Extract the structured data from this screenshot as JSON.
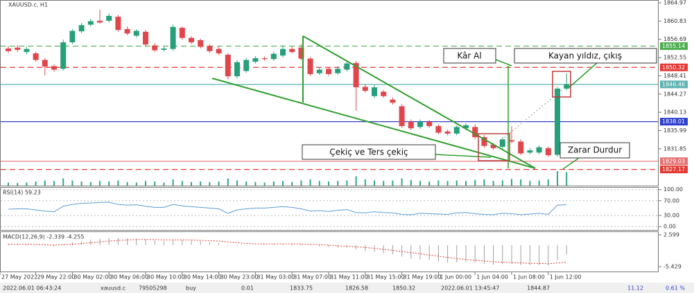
{
  "chart_data": [
    {
      "type": "candlestick",
      "title": "XAUUSD.c, H1",
      "categories": [
        "27 May 2022",
        null,
        null,
        "29 May 22:00",
        null,
        null,
        null,
        "30 May 02:00",
        null,
        null,
        null,
        "30 May 06:00",
        null,
        null,
        null,
        "30 May 10:00",
        null,
        null,
        null,
        "30 May 14:00",
        null,
        null,
        null,
        "30 May 23:00",
        null,
        null,
        null,
        "31 May 03:00",
        null,
        null,
        null,
        "31 May 07:00",
        null,
        null,
        null,
        "31 May 11:00",
        null,
        null,
        null,
        "31 May 15:00",
        null,
        null,
        null,
        "31 May 19:00",
        null,
        null,
        null,
        "1 Jun 00:00",
        null,
        null,
        null,
        "1 Jun 04:00",
        null,
        null,
        null,
        "1 Jun 08:00",
        null,
        null,
        null,
        "1 Jun 12:00",
        null,
        null
      ],
      "open": [
        1854.6,
        1854.8,
        1853.8,
        1853.5,
        1852.0,
        1850.6,
        1850.0,
        1856.0,
        1858.5,
        1860.0,
        1860.9,
        1860.9,
        1861.8,
        1859.0,
        1857.5,
        1858.4,
        1855.3,
        1854.3,
        1854.5,
        1859.3,
        1857.0,
        1856.5,
        1855.2,
        1854.5,
        1853.2,
        1848.3,
        1849.5,
        1851.6,
        1852.4,
        1852.2,
        1853.0,
        1854.5,
        1854.8,
        1852.3,
        1849.0,
        1850.0,
        1849.0,
        1849.8,
        1851.3,
        1845.9,
        1843.8,
        1844.8,
        1843.0,
        1841.5,
        1838.0,
        1836.8,
        1838.0,
        1837.0,
        1835.8,
        1835.3,
        1836.5,
        1836.8,
        1834.5,
        1832.8,
        1832.3,
        1833.8,
        1833.5,
        1831.0,
        1831.0,
        1832.0,
        1830.5,
        1845.5
      ],
      "high": [
        1855.2,
        1855.4,
        1855.0,
        1853.9,
        1852.4,
        1851.0,
        1856.6,
        1859.0,
        1860.4,
        1861.3,
        1863.4,
        1862.5,
        1862.2,
        1859.6,
        1859.0,
        1858.8,
        1855.8,
        1855.0,
        1860.0,
        1859.6,
        1857.4,
        1856.9,
        1855.6,
        1855.0,
        1853.6,
        1851.9,
        1852.4,
        1852.9,
        1852.8,
        1853.9,
        1855.3,
        1855.0,
        1855.6,
        1852.7,
        1850.2,
        1850.4,
        1850.6,
        1851.6,
        1851.8,
        1846.5,
        1846.3,
        1845.2,
        1843.5,
        1842.0,
        1838.5,
        1838.5,
        1838.4,
        1837.4,
        1836.2,
        1837.2,
        1837.6,
        1837.4,
        1835.0,
        1833.2,
        1834.5,
        1837.0,
        1834.0,
        1832.0,
        1832.6,
        1832.4,
        1845.9,
        1849.0
      ],
      "low": [
        1853.6,
        1853.8,
        1853.3,
        1851.6,
        1848.5,
        1849.3,
        1849.6,
        1855.6,
        1858.1,
        1859.6,
        1860.2,
        1860.5,
        1858.4,
        1857.6,
        1857.1,
        1855.1,
        1853.8,
        1853.9,
        1854.1,
        1856.6,
        1855.6,
        1854.6,
        1853.6,
        1853.1,
        1847.6,
        1847.8,
        1849.1,
        1851.2,
        1851.8,
        1851.8,
        1852.6,
        1853.4,
        1851.9,
        1848.4,
        1848.6,
        1848.4,
        1848.6,
        1849.4,
        1840.5,
        1844.6,
        1843.4,
        1843.4,
        1841.9,
        1836.6,
        1836.1,
        1836.4,
        1836.6,
        1835.1,
        1834.9,
        1834.9,
        1836.1,
        1834.1,
        1832.1,
        1831.6,
        1831.9,
        1833.1,
        1830.4,
        1830.6,
        1830.6,
        1830.0,
        1830.1,
        1845.1
      ],
      "close": [
        1854.0,
        1854.3,
        1854.5,
        1852.0,
        1850.5,
        1849.8,
        1856.0,
        1858.6,
        1859.9,
        1860.8,
        1860.5,
        1862.0,
        1858.8,
        1858.0,
        1858.6,
        1855.5,
        1854.2,
        1854.6,
        1859.5,
        1857.0,
        1856.0,
        1855.0,
        1854.0,
        1853.5,
        1848.3,
        1851.5,
        1852.0,
        1852.4,
        1852.2,
        1853.4,
        1854.5,
        1853.8,
        1852.3,
        1848.8,
        1849.8,
        1848.8,
        1850.0,
        1851.2,
        1845.8,
        1845.0,
        1845.8,
        1843.8,
        1842.3,
        1837.0,
        1836.5,
        1838.0,
        1837.0,
        1835.5,
        1835.3,
        1836.8,
        1837.2,
        1834.5,
        1832.5,
        1832.0,
        1834.0,
        1833.5,
        1830.8,
        1831.5,
        1832.2,
        1830.4,
        1845.5,
        1846.5
      ],
      "volume": [
        6,
        5,
        6,
        8,
        10,
        9,
        14,
        10,
        8,
        7,
        9,
        8,
        10,
        7,
        6,
        9,
        8,
        6,
        12,
        9,
        7,
        8,
        7,
        8,
        14,
        10,
        8,
        7,
        6,
        8,
        9,
        7,
        10,
        12,
        9,
        8,
        9,
        10,
        18,
        12,
        10,
        9,
        10,
        14,
        11,
        9,
        8,
        10,
        9,
        10,
        9,
        11,
        12,
        9,
        10,
        13,
        12,
        9,
        10,
        12,
        28,
        26
      ],
      "up_color": "#26a07a",
      "down_color": "#e0474c",
      "volume_color": "#2fa58a",
      "ylim": [
        1823.5,
        1865.6
      ],
      "yticks": [
        1864.97,
        1860.83,
        1856.69,
        1852.55,
        1848.41,
        1844.27,
        1840.13,
        1835.99,
        1831.85
      ],
      "levels": [
        {
          "value": 1855.14,
          "color": "#4caf50",
          "style": "dashed"
        },
        {
          "value": 1850.32,
          "color": "#e53935",
          "style": "dashed"
        },
        {
          "value": 1846.46,
          "color": "#5fb3b3",
          "style": "solid"
        },
        {
          "value": 1838.01,
          "color": "#2d3fcf",
          "style": "solid"
        },
        {
          "value": 1829.03,
          "color": "#e57373",
          "style": "solid"
        },
        {
          "value": 1827.17,
          "color": "#e53935",
          "style": "dashed"
        }
      ],
      "annotations": [
        "Kâr Al",
        "Kayan yıldız, çıkış",
        "Çekiç ve Ters çekiç",
        "Zarar Durdur"
      ]
    },
    {
      "type": "line",
      "title": "RSI(14) 59.23",
      "values": [
        47,
        48,
        48,
        45,
        42,
        40,
        55,
        60,
        63,
        64,
        65,
        66,
        60,
        58,
        59,
        55,
        52,
        52,
        60,
        56,
        54,
        52,
        50,
        48,
        36,
        45,
        48,
        50,
        50,
        52,
        54,
        52,
        48,
        42,
        43,
        41,
        44,
        46,
        38,
        37,
        40,
        38,
        37,
        33,
        32,
        36,
        35,
        34,
        33,
        37,
        38,
        35,
        33,
        32,
        36,
        35,
        32,
        34,
        36,
        33,
        58,
        59.23
      ],
      "color": "#5b9bd5",
      "ylim": [
        -11,
        107
      ],
      "yticks": [
        {
          "value": 100,
          "label": "100.00"
        },
        {
          "value": 70,
          "label": "70.00"
        },
        {
          "value": 30,
          "label": "30.00"
        },
        {
          "value": 0,
          "label": "0.00"
        }
      ],
      "grid": true
    },
    {
      "type": "macd",
      "title": "MACD(12,26,9) -2.339 -4.255",
      "values": [
        0.3,
        0.2,
        0.2,
        0.1,
        -0.1,
        -0.3,
        0.2,
        0.7,
        1.1,
        1.4,
        1.6,
        1.8,
        1.8,
        1.7,
        1.7,
        1.5,
        1.2,
        1.0,
        1.3,
        1.3,
        1.2,
        1.0,
        0.8,
        0.5,
        -0.1,
        -0.2,
        -0.1,
        0.0,
        0.1,
        0.2,
        0.4,
        0.4,
        0.3,
        -0.1,
        -0.3,
        -0.5,
        -0.6,
        -0.6,
        -1.1,
        -1.5,
        -1.7,
        -2.0,
        -2.3,
        -2.9,
        -3.4,
        -3.6,
        -3.8,
        -4.1,
        -4.4,
        -4.4,
        -4.3,
        -4.4,
        -4.7,
        -4.9,
        -4.8,
        -4.8,
        -5.0,
        -5.0,
        -5.0,
        -5.1,
        -3.8,
        -2.339
      ],
      "signal": [
        0.2,
        0.2,
        0.2,
        0.2,
        0.1,
        0.0,
        0.1,
        0.2,
        0.4,
        0.6,
        0.8,
        1.0,
        1.2,
        1.3,
        1.4,
        1.4,
        1.4,
        1.3,
        1.3,
        1.3,
        1.3,
        1.2,
        1.1,
        1.0,
        0.8,
        0.6,
        0.4,
        0.3,
        0.3,
        0.3,
        0.3,
        0.3,
        0.3,
        0.2,
        0.1,
        0.0,
        -0.2,
        -0.3,
        -0.4,
        -0.6,
        -0.8,
        -1.1,
        -1.3,
        -1.6,
        -1.9,
        -2.2,
        -2.5,
        -2.8,
        -3.1,
        -3.4,
        -3.6,
        -3.8,
        -4.0,
        -4.2,
        -4.3,
        -4.4,
        -4.5,
        -4.6,
        -4.6,
        -4.7,
        -4.5,
        -4.255
      ],
      "color": "#a0a0a0",
      "signal_color": "#e53935",
      "ylim": [
        -6.83,
        3.47
      ],
      "yticks": [
        2.599,
        -5.429
      ]
    }
  ],
  "status_bar": [
    "2022.06.01 06:43:24",
    "xauusd.c",
    "79505298",
    "buy",
    "0.01",
    "1833.75",
    "1826.58",
    "1850.32",
    "2022.06.01 13:45:47",
    "1844.87",
    "11.12",
    "0.61 %"
  ]
}
